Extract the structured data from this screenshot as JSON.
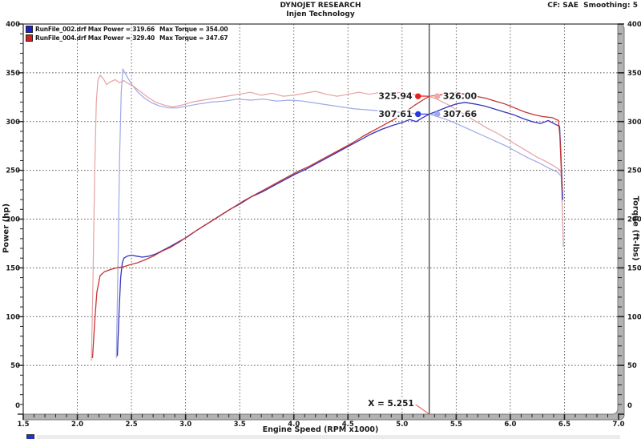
{
  "header": {
    "title": "DYNOJET RESEARCH",
    "subtitle": "Injen Technology",
    "right_info": "CF: SAE  Smoothing: 5"
  },
  "legend": {
    "runs": [
      {
        "swatch_color": "#2020c8",
        "run_label": "RunFile_002.drf Max Power = 319.66",
        "torque_label": "Max Torque = 354.00"
      },
      {
        "swatch_color": "#d02020",
        "run_label": "RunFile_004.drf Max Power = 329.40",
        "torque_label": "Max Torque = 347.67"
      }
    ]
  },
  "chart_data": {
    "type": "line",
    "title": "DYNOJET RESEARCH",
    "subtitle": "Injen Technology",
    "xlabel": "Engine Speed (RPM x1000)",
    "ylabel_left": "Power (hp)",
    "ylabel_right": "Torque (ft-lbs)",
    "xlim": [
      1.5,
      7.0
    ],
    "ylim": [
      0,
      400
    ],
    "x_major_step": 0.5,
    "x_minor_step": 0.1,
    "y_major_step": 50,
    "y_minor_step": 10,
    "grid": true,
    "x_tick_labels": [
      "1.5",
      "2.0",
      "2.5",
      "3.0",
      "3.5",
      "4.0",
      "4.5",
      "5.0",
      "5.5",
      "6.0",
      "6.5",
      "7.0"
    ],
    "y_tick_labels": [
      "0",
      "50",
      "100",
      "150",
      "200",
      "250",
      "300",
      "350",
      "400"
    ],
    "cursor": {
      "x": 5.251,
      "label": "X = 5.251"
    },
    "callouts": [
      {
        "label": "325.94",
        "x": 5.251,
        "y": 325.94,
        "side": "left",
        "dot_color": "#e62020"
      },
      {
        "label": "326.00",
        "x": 5.251,
        "y": 326.0,
        "side": "right",
        "dot_color": "#f2a8a8"
      },
      {
        "label": "307.61",
        "x": 5.251,
        "y": 307.61,
        "side": "left",
        "dot_color": "#2a38dd"
      },
      {
        "label": "307.66",
        "x": 5.251,
        "y": 307.66,
        "side": "right",
        "dot_color": "#9fabef"
      }
    ],
    "series": [
      {
        "name": "runfile-002-torque",
        "color": "#9fa8e6",
        "width": 1.2,
        "points": [
          [
            2.36,
            58
          ],
          [
            2.375,
            150
          ],
          [
            2.39,
            260
          ],
          [
            2.405,
            330
          ],
          [
            2.42,
            354
          ],
          [
            2.44,
            350
          ],
          [
            2.47,
            344
          ],
          [
            2.51,
            337
          ],
          [
            2.56,
            330
          ],
          [
            2.62,
            324
          ],
          [
            2.69,
            319
          ],
          [
            2.76,
            316
          ],
          [
            2.84,
            314
          ],
          [
            2.93,
            314
          ],
          [
            3.02,
            316
          ],
          [
            3.12,
            318
          ],
          [
            3.24,
            320
          ],
          [
            3.36,
            321
          ],
          [
            3.48,
            323
          ],
          [
            3.6,
            322
          ],
          [
            3.72,
            323
          ],
          [
            3.84,
            321
          ],
          [
            3.96,
            322
          ],
          [
            4.08,
            321
          ],
          [
            4.2,
            319
          ],
          [
            4.32,
            317
          ],
          [
            4.44,
            315
          ],
          [
            4.56,
            313
          ],
          [
            4.68,
            312
          ],
          [
            4.8,
            311
          ],
          [
            4.92,
            310
          ],
          [
            5.04,
            309
          ],
          [
            5.16,
            308
          ],
          [
            5.251,
            307.66
          ],
          [
            5.36,
            304
          ],
          [
            5.46,
            300
          ],
          [
            5.56,
            295
          ],
          [
            5.66,
            290
          ],
          [
            5.76,
            285
          ],
          [
            5.86,
            280
          ],
          [
            5.96,
            275
          ],
          [
            6.06,
            269
          ],
          [
            6.16,
            263
          ],
          [
            6.26,
            258
          ],
          [
            6.36,
            252
          ],
          [
            6.44,
            248
          ],
          [
            6.47,
            244
          ],
          [
            6.48,
            210
          ],
          [
            6.49,
            172
          ]
        ]
      },
      {
        "name": "runfile-004-torque",
        "color": "#e7a2a2",
        "width": 1.2,
        "points": [
          [
            2.13,
            55
          ],
          [
            2.145,
            140
          ],
          [
            2.16,
            250
          ],
          [
            2.175,
            320
          ],
          [
            2.19,
            342
          ],
          [
            2.21,
            347.5
          ],
          [
            2.24,
            344
          ],
          [
            2.27,
            338
          ],
          [
            2.31,
            341
          ],
          [
            2.35,
            343
          ],
          [
            2.39,
            340
          ],
          [
            2.43,
            342
          ],
          [
            2.47,
            339
          ],
          [
            2.52,
            336
          ],
          [
            2.58,
            331
          ],
          [
            2.65,
            325
          ],
          [
            2.72,
            320
          ],
          [
            2.8,
            317
          ],
          [
            2.88,
            315
          ],
          [
            2.97,
            317
          ],
          [
            3.06,
            320
          ],
          [
            3.16,
            322
          ],
          [
            3.27,
            324
          ],
          [
            3.38,
            326
          ],
          [
            3.49,
            328
          ],
          [
            3.6,
            330
          ],
          [
            3.7,
            327
          ],
          [
            3.8,
            329
          ],
          [
            3.9,
            326
          ],
          [
            4.0,
            327
          ],
          [
            4.1,
            329
          ],
          [
            4.2,
            331
          ],
          [
            4.3,
            328
          ],
          [
            4.4,
            326
          ],
          [
            4.5,
            328
          ],
          [
            4.6,
            330
          ],
          [
            4.7,
            328
          ],
          [
            4.8,
            330
          ],
          [
            4.9,
            329
          ],
          [
            5.0,
            330
          ],
          [
            5.08,
            328
          ],
          [
            5.16,
            327
          ],
          [
            5.251,
            326
          ],
          [
            5.34,
            322
          ],
          [
            5.43,
            317
          ],
          [
            5.52,
            311
          ],
          [
            5.61,
            305
          ],
          [
            5.7,
            299
          ],
          [
            5.79,
            293
          ],
          [
            5.88,
            288
          ],
          [
            5.97,
            282
          ],
          [
            6.06,
            276
          ],
          [
            6.15,
            270
          ],
          [
            6.24,
            264
          ],
          [
            6.33,
            259
          ],
          [
            6.41,
            254
          ],
          [
            6.46,
            250
          ],
          [
            6.47,
            246
          ],
          [
            6.48,
            212
          ],
          [
            6.49,
            176
          ]
        ]
      },
      {
        "name": "runfile-002-power",
        "color": "#3434bb",
        "width": 1.3,
        "points": [
          [
            2.37,
            60
          ],
          [
            2.385,
            105
          ],
          [
            2.4,
            140
          ],
          [
            2.415,
            155
          ],
          [
            2.43,
            160
          ],
          [
            2.46,
            162
          ],
          [
            2.5,
            163
          ],
          [
            2.55,
            162
          ],
          [
            2.6,
            161
          ],
          [
            2.66,
            162
          ],
          [
            2.72,
            164
          ],
          [
            2.79,
            168
          ],
          [
            2.86,
            172
          ],
          [
            2.94,
            177
          ],
          [
            3.02,
            182
          ],
          [
            3.11,
            189
          ],
          [
            3.21,
            196
          ],
          [
            3.31,
            203
          ],
          [
            3.41,
            210
          ],
          [
            3.51,
            216
          ],
          [
            3.61,
            223
          ],
          [
            3.71,
            228
          ],
          [
            3.81,
            234
          ],
          [
            3.91,
            240
          ],
          [
            4.01,
            246
          ],
          [
            4.11,
            251
          ],
          [
            4.21,
            257
          ],
          [
            4.31,
            263
          ],
          [
            4.41,
            269
          ],
          [
            4.51,
            275
          ],
          [
            4.61,
            281
          ],
          [
            4.71,
            287
          ],
          [
            4.81,
            292
          ],
          [
            4.91,
            296
          ],
          [
            5.0,
            299
          ],
          [
            5.07,
            302
          ],
          [
            5.13,
            300
          ],
          [
            5.19,
            304
          ],
          [
            5.251,
            307.61
          ],
          [
            5.33,
            311
          ],
          [
            5.42,
            315
          ],
          [
            5.5,
            318
          ],
          [
            5.58,
            319.66
          ],
          [
            5.67,
            318
          ],
          [
            5.76,
            316
          ],
          [
            5.85,
            313
          ],
          [
            5.94,
            310
          ],
          [
            6.03,
            307
          ],
          [
            6.12,
            303
          ],
          [
            6.2,
            300
          ],
          [
            6.28,
            298
          ],
          [
            6.35,
            301
          ],
          [
            6.42,
            297
          ],
          [
            6.455,
            295
          ],
          [
            6.465,
            272
          ],
          [
            6.475,
            245
          ],
          [
            6.485,
            220
          ]
        ]
      },
      {
        "name": "runfile-004-power",
        "color": "#c53434",
        "width": 1.3,
        "points": [
          [
            2.14,
            58
          ],
          [
            2.16,
            95
          ],
          [
            2.18,
            125
          ],
          [
            2.21,
            142
          ],
          [
            2.25,
            146
          ],
          [
            2.3,
            148
          ],
          [
            2.36,
            150
          ],
          [
            2.42,
            151
          ],
          [
            2.48,
            153
          ],
          [
            2.55,
            155
          ],
          [
            2.62,
            158
          ],
          [
            2.7,
            162
          ],
          [
            2.78,
            167
          ],
          [
            2.86,
            171
          ],
          [
            2.95,
            177
          ],
          [
            3.04,
            184
          ],
          [
            3.14,
            191
          ],
          [
            3.24,
            198
          ],
          [
            3.34,
            205
          ],
          [
            3.44,
            212
          ],
          [
            3.54,
            219
          ],
          [
            3.64,
            225
          ],
          [
            3.74,
            231
          ],
          [
            3.84,
            237
          ],
          [
            3.94,
            243
          ],
          [
            4.04,
            249
          ],
          [
            4.14,
            254
          ],
          [
            4.24,
            260
          ],
          [
            4.34,
            266
          ],
          [
            4.44,
            272
          ],
          [
            4.54,
            278
          ],
          [
            4.64,
            285
          ],
          [
            4.74,
            291
          ],
          [
            4.84,
            297
          ],
          [
            4.94,
            303
          ],
          [
            5.03,
            310
          ],
          [
            5.12,
            317
          ],
          [
            5.19,
            322
          ],
          [
            5.251,
            325.94
          ],
          [
            5.33,
            327
          ],
          [
            5.42,
            328.5
          ],
          [
            5.5,
            329.4
          ],
          [
            5.59,
            328
          ],
          [
            5.68,
            326
          ],
          [
            5.77,
            324
          ],
          [
            5.86,
            321
          ],
          [
            5.95,
            318
          ],
          [
            6.04,
            314
          ],
          [
            6.13,
            310
          ],
          [
            6.22,
            307
          ],
          [
            6.31,
            305
          ],
          [
            6.39,
            304
          ],
          [
            6.445,
            301
          ],
          [
            6.458,
            285
          ],
          [
            6.468,
            258
          ],
          [
            6.478,
            230
          ]
        ]
      }
    ]
  }
}
